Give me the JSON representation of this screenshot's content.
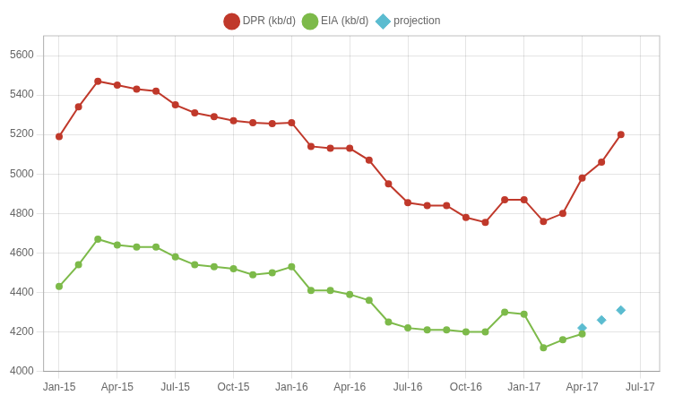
{
  "chart_data": {
    "type": "line",
    "series": [
      {
        "name": "DPR (kb/d)",
        "type": "line",
        "marker": "circle",
        "color": "#c0392b",
        "x": [
          0,
          1,
          2,
          3,
          4,
          5,
          6,
          7,
          8,
          9,
          10,
          11,
          12,
          13,
          14,
          15,
          16,
          17,
          18,
          19,
          20,
          21,
          22,
          23,
          24,
          25,
          26,
          27,
          28,
          29
        ],
        "values": [
          5190,
          5340,
          5470,
          5450,
          5430,
          5420,
          5350,
          5310,
          5290,
          5270,
          5260,
          5255,
          5260,
          5140,
          5130,
          5130,
          5070,
          4950,
          4855,
          4840,
          4840,
          4780,
          4755,
          4870,
          4870,
          4760,
          4800,
          4980,
          5060,
          5200
        ]
      },
      {
        "name": "EIA (kb/d)",
        "type": "line",
        "marker": "circle",
        "color": "#7dba4a",
        "x": [
          0,
          1,
          2,
          3,
          4,
          5,
          6,
          7,
          8,
          9,
          10,
          11,
          12,
          13,
          14,
          15,
          16,
          17,
          18,
          19,
          20,
          21,
          22,
          23,
          24,
          25,
          26,
          27
        ],
        "values": [
          4430,
          4540,
          4670,
          4640,
          4630,
          4630,
          4580,
          4540,
          4530,
          4520,
          4490,
          4500,
          4530,
          4410,
          4410,
          4390,
          4360,
          4250,
          4220,
          4210,
          4210,
          4200,
          4200,
          4300,
          4290,
          4120,
          4160,
          4190
        ]
      },
      {
        "name": "projection",
        "type": "scatter",
        "marker": "diamond",
        "color": "#5bbcd0",
        "x": [
          27,
          28,
          29
        ],
        "values": [
          4220,
          4260,
          4310
        ]
      }
    ],
    "xlim": [
      -0.8,
      31.0
    ],
    "xticks": [
      {
        "value": 0,
        "label": "Jan-15"
      },
      {
        "value": 3,
        "label": "Apr-15"
      },
      {
        "value": 6,
        "label": "Jul-15"
      },
      {
        "value": 9,
        "label": "Oct-15"
      },
      {
        "value": 12,
        "label": "Jan-16"
      },
      {
        "value": 15,
        "label": "Apr-16"
      },
      {
        "value": 18,
        "label": "Jul-16"
      },
      {
        "value": 21,
        "label": "Oct-16"
      },
      {
        "value": 24,
        "label": "Jan-17"
      },
      {
        "value": 27,
        "label": "Apr-17"
      },
      {
        "value": 30,
        "label": "Jul-17"
      }
    ],
    "ylim": [
      4000,
      5700
    ],
    "yticks": [
      4000,
      4200,
      4400,
      4600,
      4800,
      5000,
      5200,
      5400,
      5600
    ],
    "grid": true,
    "legend": "top"
  }
}
